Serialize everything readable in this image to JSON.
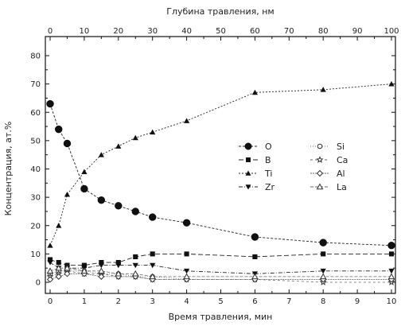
{
  "chart_data": {
    "type": "line",
    "xlabel": "Время травления, мин",
    "x2label": "Глубина травления, нм",
    "ylabel": "Концентрация, ат.%",
    "xlim": [
      0,
      10
    ],
    "x2lim": [
      0,
      100
    ],
    "ylim": [
      0,
      80
    ],
    "xticks": [
      "0",
      "1",
      "2",
      "3",
      "4",
      "5",
      "6",
      "7",
      "8",
      "9",
      "10"
    ],
    "x2ticks": [
      "0",
      "10",
      "20",
      "30",
      "40",
      "50",
      "60",
      "70",
      "80",
      "90",
      "100"
    ],
    "yticks": [
      "0",
      "10",
      "20",
      "30",
      "40",
      "50",
      "60",
      "70",
      "80"
    ],
    "legend_position": "center-right",
    "grid": false,
    "series": [
      {
        "name": "O",
        "marker": "circle",
        "x": [
          0,
          0.25,
          0.5,
          1,
          1.5,
          2,
          2.5,
          3,
          4,
          6,
          8,
          10
        ],
        "y": [
          63,
          54,
          49,
          33,
          29,
          27,
          25,
          23,
          21,
          16,
          14,
          13
        ]
      },
      {
        "name": "B",
        "marker": "square",
        "x": [
          0,
          0.25,
          0.5,
          1,
          1.5,
          2,
          2.5,
          3,
          4,
          6,
          8,
          10
        ],
        "y": [
          8,
          7,
          6,
          6,
          7,
          7,
          9,
          10,
          10,
          9,
          10,
          10
        ]
      },
      {
        "name": "Ti",
        "marker": "triangle-up",
        "x": [
          0,
          0.25,
          0.5,
          1,
          1.5,
          2,
          2.5,
          3,
          4,
          6,
          8,
          10
        ],
        "y": [
          13,
          20,
          31,
          39,
          45,
          48,
          51,
          53,
          57,
          67,
          68,
          70
        ]
      },
      {
        "name": "Zr",
        "marker": "triangle-down",
        "x": [
          0,
          0.25,
          0.5,
          1,
          1.5,
          2,
          2.5,
          3,
          4,
          6,
          8,
          10
        ],
        "y": [
          7,
          5,
          5,
          5,
          6,
          6,
          6,
          6,
          4,
          3,
          4,
          4
        ]
      },
      {
        "name": "Si",
        "marker": "circle-open",
        "x": [
          0,
          0.25,
          0.5,
          1,
          1.5,
          2,
          2.5,
          3,
          4,
          6,
          8,
          10
        ],
        "y": [
          3,
          4,
          4,
          4,
          3,
          3,
          2,
          2,
          1,
          1,
          1,
          1
        ]
      },
      {
        "name": "Ca",
        "marker": "star-open",
        "x": [
          0,
          0.25,
          0.5,
          1,
          1.5,
          2,
          2.5,
          3,
          4,
          6,
          8,
          10
        ],
        "y": [
          2,
          3,
          4,
          3,
          3,
          2,
          2,
          1,
          1,
          1,
          0,
          0
        ]
      },
      {
        "name": "Al",
        "marker": "diamond-open",
        "x": [
          0,
          0.25,
          0.5,
          1,
          1.5,
          2,
          2.5,
          3,
          4,
          6,
          8,
          10
        ],
        "y": [
          1,
          2,
          3,
          3,
          2,
          2,
          2,
          1,
          1,
          1,
          1,
          1
        ]
      },
      {
        "name": "La",
        "marker": "triangle-open",
        "x": [
          0,
          0.25,
          0.5,
          1,
          1.5,
          2,
          2.5,
          3,
          4,
          6,
          8,
          10
        ],
        "y": [
          4,
          5,
          5,
          4,
          4,
          3,
          3,
          2,
          2,
          2,
          2,
          2
        ]
      }
    ]
  }
}
